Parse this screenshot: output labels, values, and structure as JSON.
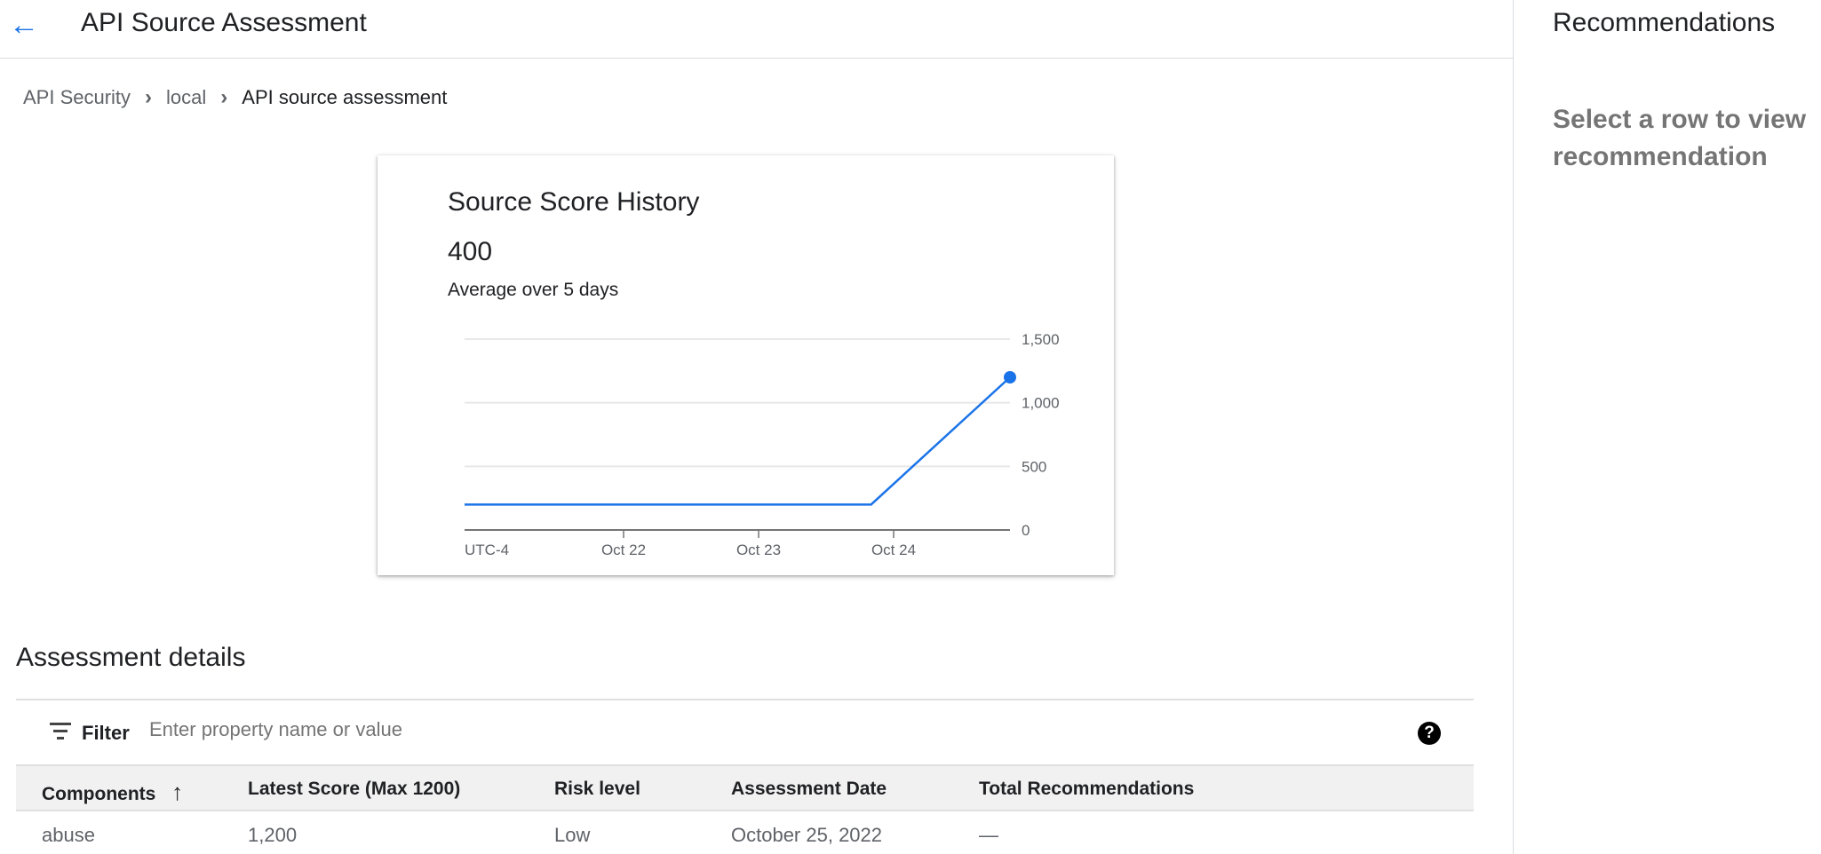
{
  "header": {
    "title": "API Source Assessment",
    "back_icon": "arrow-left-icon"
  },
  "breadcrumb": [
    "API Security",
    "local",
    "API source assessment"
  ],
  "recommendations": {
    "title": "Recommendations",
    "empty_message": "Select a row to view recommendation"
  },
  "card": {
    "title": "Source Score History",
    "value": "400",
    "subtitle": "Average over 5 days"
  },
  "chart_data": {
    "type": "line",
    "timezone_label": "UTC-4",
    "x_tick_labels": [
      "Oct 22",
      "Oct 23",
      "Oct 24"
    ],
    "y_tick_labels": [
      "0",
      "500",
      "1,000",
      "1,500"
    ],
    "ylim": [
      0,
      1500
    ],
    "grid": true,
    "line_color": "#1a73e8",
    "series": [
      {
        "x": [
          "2022-10-20T20:00",
          "2022-10-23T20:00",
          "2022-10-24T20:00"
        ],
        "y": [
          200,
          200,
          1200
        ]
      }
    ]
  },
  "assessment": {
    "title": "Assessment details",
    "filter_label": "Filter",
    "filter_placeholder": "Enter property name or value",
    "columns": [
      "Components",
      "Latest Score (Max 1200)",
      "Risk level",
      "Assessment Date",
      "Total Recommendations"
    ],
    "rows": [
      [
        "abuse",
        "1,200",
        "Low",
        "October 25, 2022",
        "—"
      ]
    ]
  }
}
